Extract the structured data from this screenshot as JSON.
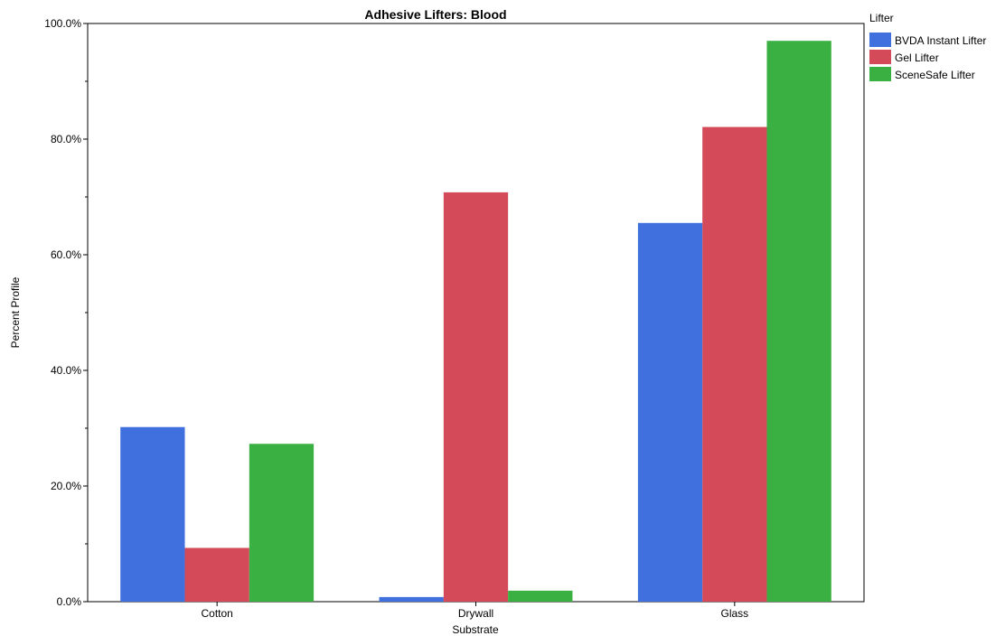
{
  "chart_data": {
    "type": "bar",
    "title": "Adhesive Lifters: Blood",
    "xlabel": "Substrate",
    "ylabel": "Percent Profile",
    "categories": [
      "Cotton",
      "Drywall",
      "Glass"
    ],
    "ylim": [
      0,
      100
    ],
    "yticks": [
      0,
      20,
      40,
      60,
      80,
      100
    ],
    "ytick_labels": [
      "0.0%",
      "20.0%",
      "40.0%",
      "60.0%",
      "80.0%",
      "100.0%"
    ],
    "legend_title": "Lifter",
    "legend_position": "right",
    "grid": false,
    "series": [
      {
        "name": "BVDA Instant Lifter",
        "color": "#4070dd",
        "values": [
          30.2,
          0.8,
          65.5
        ]
      },
      {
        "name": "Gel Lifter",
        "color": "#d44a59",
        "values": [
          9.3,
          70.8,
          82.1
        ]
      },
      {
        "name": "SceneSafe Lifter",
        "color": "#3ab042",
        "values": [
          27.3,
          1.9,
          97.0
        ]
      }
    ]
  }
}
